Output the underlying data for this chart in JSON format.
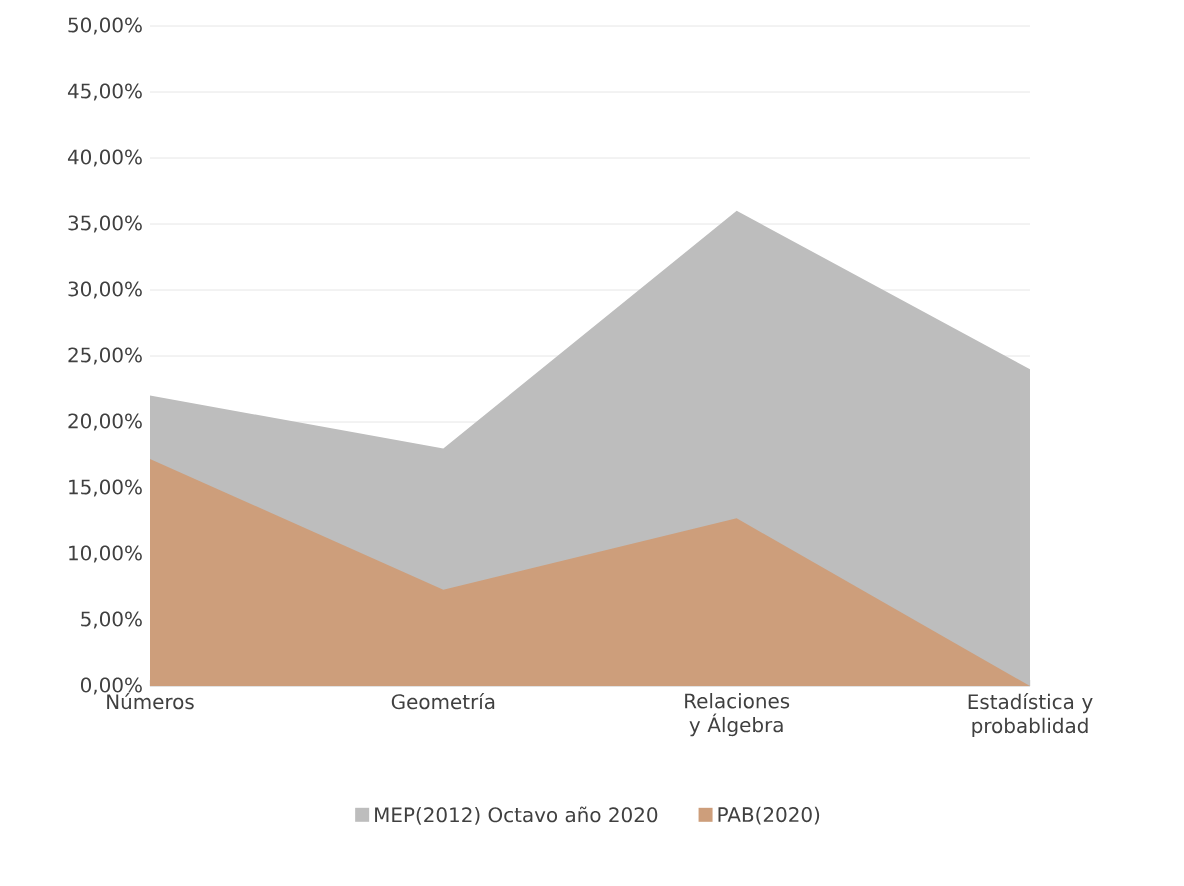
{
  "chart_data": {
    "type": "area",
    "categories": [
      "Números",
      "Geometría",
      "Relaciones y Álgebra",
      "Estadística y probablidad"
    ],
    "series": [
      {
        "name": "MEP(2012) Octavo año 2020",
        "color": "#bdbdbd",
        "values": [
          22,
          18,
          36,
          24
        ]
      },
      {
        "name": "PAB(2020)",
        "color": "#cd9e7b",
        "values": [
          17.2,
          7.3,
          12.7,
          0
        ]
      }
    ],
    "ylim": [
      0,
      50
    ],
    "yticks": [
      {
        "value": 0,
        "label": "0,00%"
      },
      {
        "value": 5,
        "label": "5,00%"
      },
      {
        "value": 10,
        "label": "10,00%"
      },
      {
        "value": 15,
        "label": "15,00%"
      },
      {
        "value": 20,
        "label": "20,00%"
      },
      {
        "value": 25,
        "label": "25,00%"
      },
      {
        "value": 30,
        "label": "30,00%"
      },
      {
        "value": 35,
        "label": "35,00%"
      },
      {
        "value": 40,
        "label": "40,00%"
      },
      {
        "value": 45,
        "label": "45,00%"
      },
      {
        "value": 50,
        "label": "50,00%"
      }
    ],
    "grid": "y",
    "legend": "bottom"
  }
}
